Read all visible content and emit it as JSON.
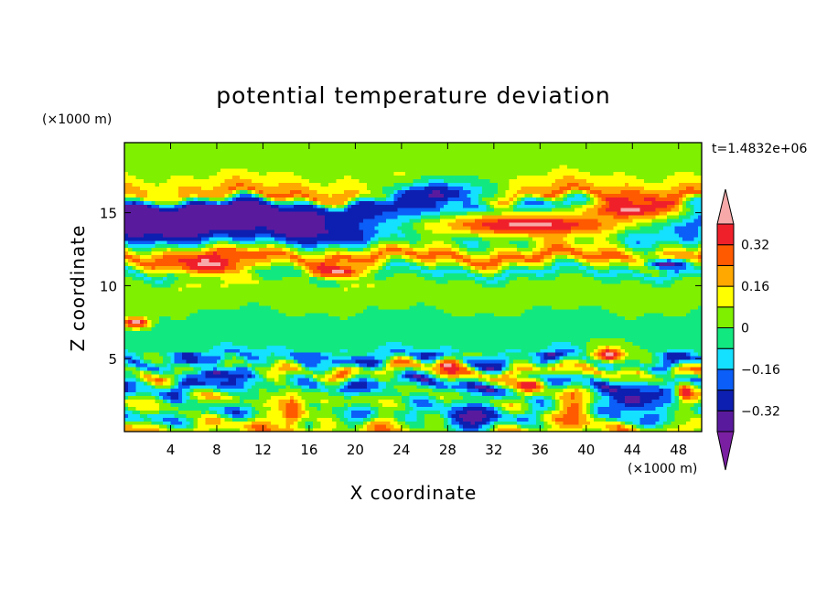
{
  "chart_data": {
    "type": "heatmap",
    "title": "potential temperature deviation",
    "xlabel": "X coordinate",
    "ylabel": "Z coordinate",
    "x_unit": "(×1000 m)",
    "y_unit": "(×1000 m)",
    "time_label": "t=1.4832e+06",
    "xlim": [
      0,
      50
    ],
    "ylim": [
      0,
      19.8
    ],
    "x_ticks": [
      4,
      8,
      12,
      16,
      20,
      24,
      28,
      32,
      36,
      40,
      44,
      48
    ],
    "y_ticks": [
      5,
      10,
      15
    ],
    "colorbar": {
      "levels": [
        -0.4,
        -0.32,
        -0.24,
        -0.16,
        -0.08,
        0,
        0.08,
        0.16,
        0.24,
        0.32,
        0.4
      ],
      "tick_values": [
        -0.32,
        -0.16,
        0,
        0.16,
        0.32
      ],
      "tick_labels": [
        "−0.32",
        "−0.16",
        "0",
        "0.16",
        "0.32"
      ],
      "colors": [
        "#7a1fa2",
        "#5a1a9e",
        "#0d1fb0",
        "#0b5ef7",
        "#14e0ff",
        "#12e880",
        "#7ff000",
        "#ffff00",
        "#ffa800",
        "#ff5a00",
        "#f0202a",
        "#f7a9a9"
      ],
      "extend": "both"
    },
    "field_bands": [
      {
        "z": 18.5,
        "value": 0.03
      },
      {
        "z": 17.3,
        "value": 0.1
      },
      {
        "z": 16.2,
        "value": 0.28
      },
      {
        "z": 15.5,
        "value": -0.3
      },
      {
        "z": 14.3,
        "value": -0.38
      },
      {
        "z": 13.4,
        "value": -0.2
      },
      {
        "z": 12.0,
        "value": 0.3
      },
      {
        "z": 11.0,
        "value": -0.12
      },
      {
        "z": 10.0,
        "value": 0.08
      },
      {
        "z": 8.7,
        "value": 0.02
      },
      {
        "z": 7.4,
        "value": -0.04
      },
      {
        "z": 6.1,
        "value": 0.0
      },
      {
        "z": 4.9,
        "value": -0.2
      },
      {
        "z": 4.2,
        "value": 0.18
      },
      {
        "z": 3.3,
        "value": -0.22
      },
      {
        "z": 2.3,
        "value": 0.06
      },
      {
        "z": 1.2,
        "value": -0.1
      },
      {
        "z": 0.4,
        "value": 0.12
      }
    ],
    "features": [
      {
        "x": 4.5,
        "z": 14.5,
        "rx": 6,
        "rz": 1.2,
        "value": -0.4
      },
      {
        "x": 17,
        "z": 14.0,
        "rx": 7,
        "rz": 1.0,
        "value": -0.38
      },
      {
        "x": 27,
        "z": 16.3,
        "rx": 5,
        "rz": 1.0,
        "value": -0.34
      },
      {
        "x": 35,
        "z": 14.2,
        "rx": 11,
        "rz": 1.0,
        "value": 0.42
      },
      {
        "x": 44,
        "z": 15.3,
        "rx": 5,
        "rz": 0.8,
        "value": 0.42
      },
      {
        "x": 7.5,
        "z": 11.5,
        "rx": 3.5,
        "rz": 0.8,
        "value": 0.42
      },
      {
        "x": 18.5,
        "z": 11.0,
        "rx": 2.5,
        "rz": 0.5,
        "value": 0.42
      },
      {
        "x": 1,
        "z": 7.5,
        "rx": 1.2,
        "rz": 0.4,
        "value": 0.42
      },
      {
        "x": 42,
        "z": 5.3,
        "rx": 1.5,
        "rz": 0.6,
        "value": 0.42
      },
      {
        "x": 28,
        "z": 4.6,
        "rx": 1.2,
        "rz": 0.5,
        "value": 0.42
      },
      {
        "x": 35,
        "z": 3.2,
        "rx": 1.5,
        "rz": 0.5,
        "value": 0.42
      },
      {
        "x": 48.5,
        "z": 2.8,
        "rx": 0.7,
        "rz": 0.6,
        "value": 0.42
      },
      {
        "x": 14.5,
        "z": 1.5,
        "rx": 1.3,
        "rz": 1.5,
        "value": 0.3
      },
      {
        "x": 39,
        "z": 1.5,
        "rx": 1.5,
        "rz": 1.2,
        "value": 0.3
      },
      {
        "x": 8,
        "z": 4.0,
        "rx": 2.0,
        "rz": 0.5,
        "value": -0.36
      },
      {
        "x": 30,
        "z": 1.0,
        "rx": 2.5,
        "rz": 1.0,
        "value": -0.36
      },
      {
        "x": 44,
        "z": 2.2,
        "rx": 2.5,
        "rz": 1.0,
        "value": -0.35
      },
      {
        "x": 47,
        "z": 11.5,
        "rx": 2,
        "rz": 0.4,
        "value": -0.36
      }
    ]
  }
}
